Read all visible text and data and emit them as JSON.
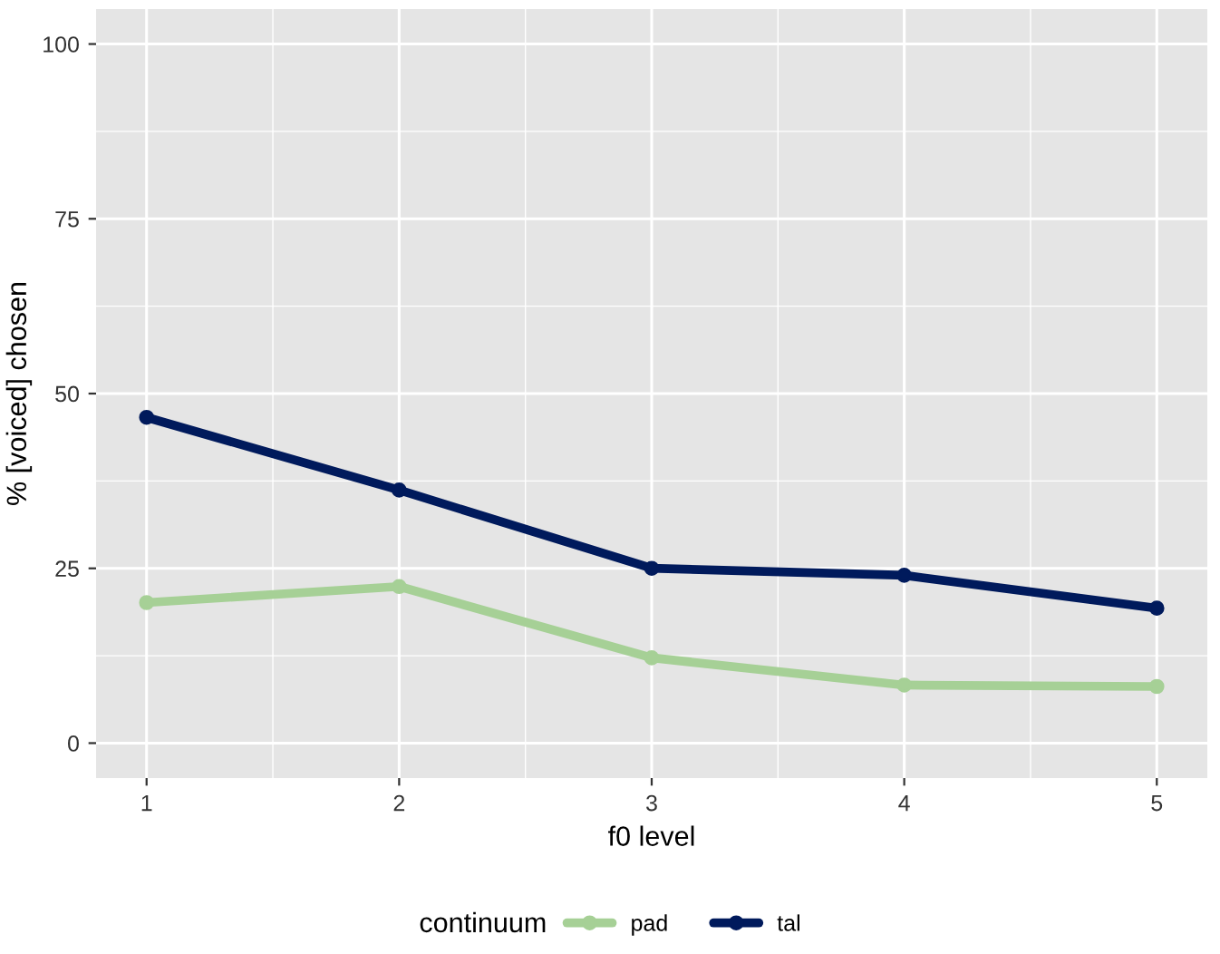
{
  "chart_data": {
    "type": "line",
    "xlabel": "f0 level",
    "ylabel": "% [voiced] chosen",
    "legend_title": "continuum",
    "x": [
      1,
      2,
      3,
      4,
      5
    ],
    "series": [
      {
        "name": "pad",
        "color": "#a6d096",
        "values": [
          20.1,
          22.4,
          12.2,
          8.3,
          8.1
        ]
      },
      {
        "name": "tal",
        "color": "#001a5c",
        "values": [
          46.6,
          36.2,
          25.0,
          24.0,
          19.3
        ]
      }
    ],
    "xlim": [
      0.8,
      5.2
    ],
    "xticks": [
      1,
      2,
      3,
      4,
      5
    ],
    "ylim": [
      -5,
      105
    ],
    "yticks": [
      0,
      25,
      50,
      75,
      100
    ],
    "grid": true,
    "legend": "bottom",
    "marker": "circle",
    "line_style": "solid"
  }
}
